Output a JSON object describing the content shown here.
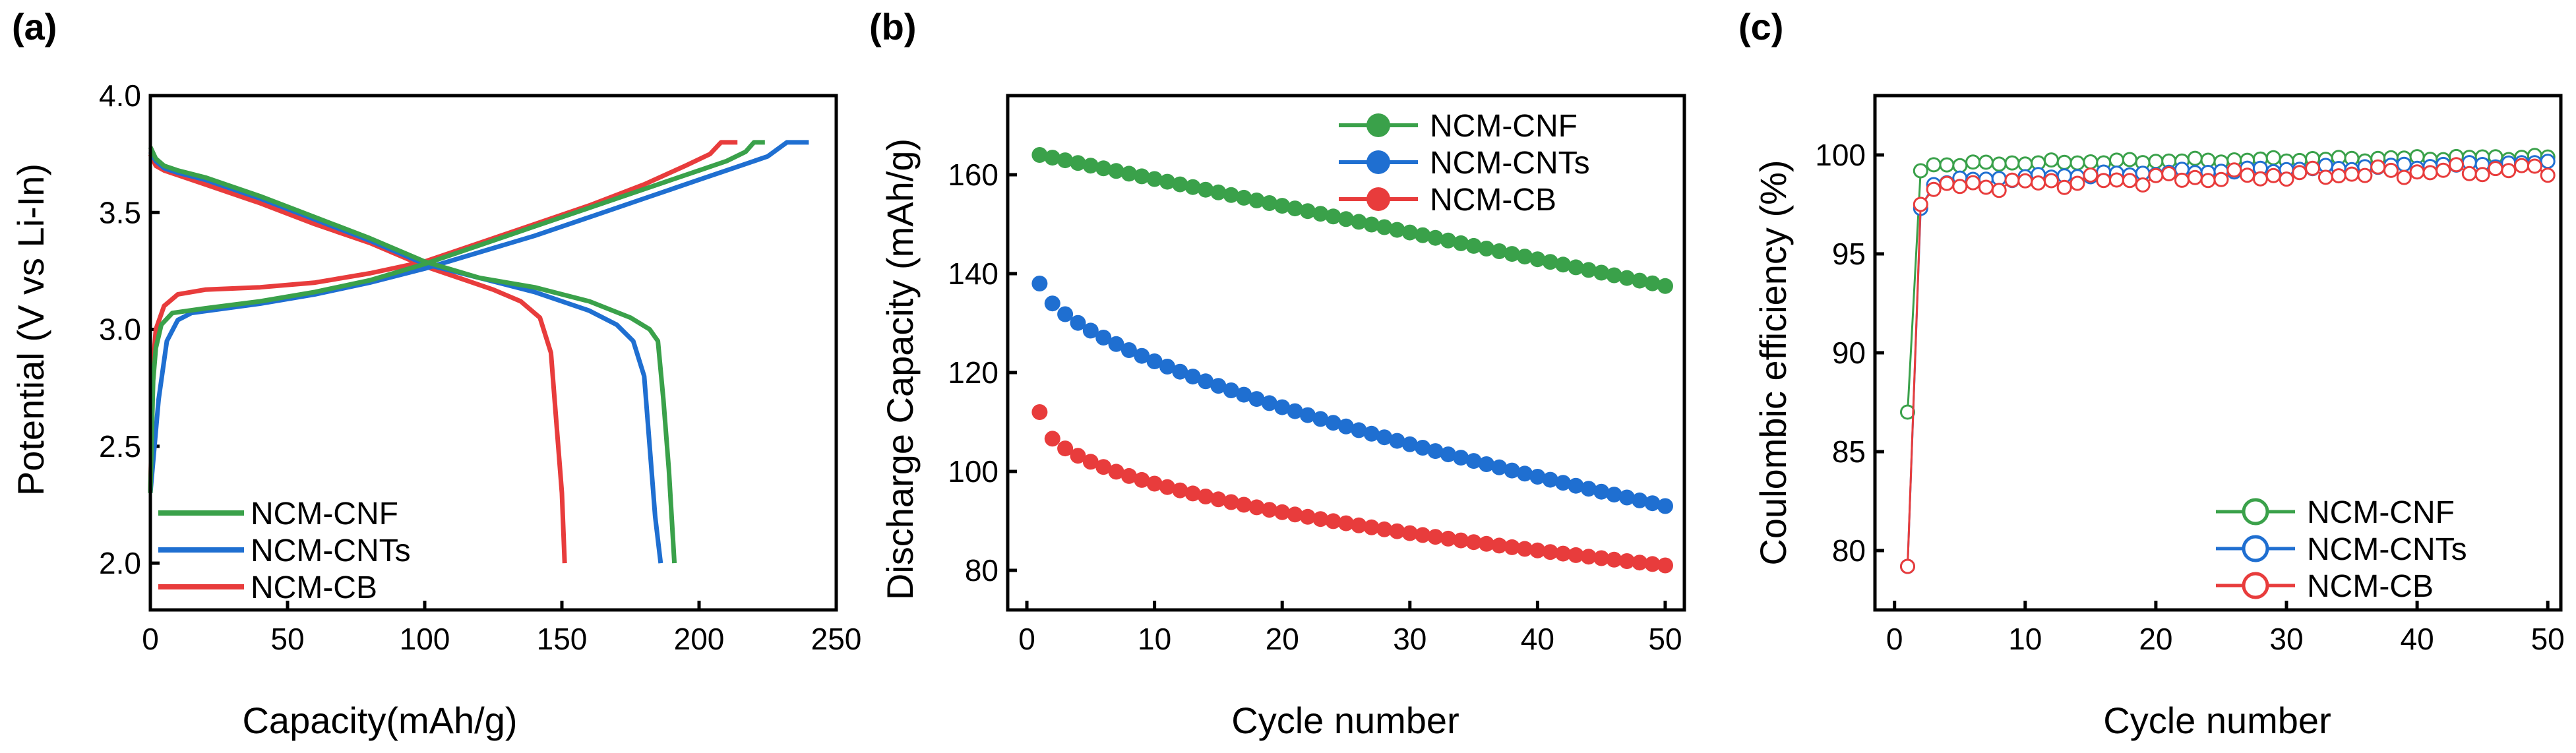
{
  "chart_data": [
    {
      "panel": "(a)",
      "type": "line",
      "xlabel": "Capacity(mAh/g)",
      "ylabel": "Potential (V vs Li-In)",
      "xlim": [
        0,
        250
      ],
      "ylim": [
        1.8,
        4.0
      ],
      "xticks": [
        0,
        50,
        100,
        150,
        200,
        250
      ],
      "yticks": [
        2.0,
        2.5,
        3.0,
        3.5,
        4.0
      ],
      "ytick_labels": [
        "2.0",
        "2.5",
        "3.0",
        "3.5",
        "4.0"
      ],
      "legend_position": "bottom-left",
      "series": [
        {
          "name": "NCM-CNF",
          "color": "#3aa14a",
          "charge": [
            [
              0,
              2.3
            ],
            [
              1,
              2.78
            ],
            [
              2,
              2.92
            ],
            [
              4,
              3.02
            ],
            [
              8,
              3.07
            ],
            [
              20,
              3.09
            ],
            [
              40,
              3.12
            ],
            [
              60,
              3.16
            ],
            [
              80,
              3.21
            ],
            [
              100,
              3.28
            ],
            [
              120,
              3.36
            ],
            [
              140,
              3.44
            ],
            [
              160,
              3.52
            ],
            [
              180,
              3.6
            ],
            [
              200,
              3.68
            ],
            [
              210,
              3.72
            ],
            [
              217,
              3.76
            ],
            [
              220,
              3.8
            ],
            [
              224,
              3.8
            ]
          ],
          "discharge": [
            [
              0,
              3.78
            ],
            [
              2,
              3.73
            ],
            [
              5,
              3.7
            ],
            [
              10,
              3.68
            ],
            [
              20,
              3.65
            ],
            [
              40,
              3.57
            ],
            [
              60,
              3.48
            ],
            [
              80,
              3.39
            ],
            [
              100,
              3.29
            ],
            [
              120,
              3.22
            ],
            [
              140,
              3.18
            ],
            [
              160,
              3.12
            ],
            [
              175,
              3.05
            ],
            [
              182,
              3.0
            ],
            [
              185,
              2.95
            ],
            [
              187,
              2.7
            ],
            [
              189,
              2.4
            ],
            [
              190,
              2.2
            ],
            [
              191,
              2.0
            ]
          ]
        },
        {
          "name": "NCM-CNTs",
          "color": "#1f6fd1",
          "charge": [
            [
              0,
              2.3
            ],
            [
              3,
              2.7
            ],
            [
              6,
              2.95
            ],
            [
              10,
              3.04
            ],
            [
              15,
              3.07
            ],
            [
              40,
              3.11
            ],
            [
              60,
              3.15
            ],
            [
              80,
              3.2
            ],
            [
              100,
              3.26
            ],
            [
              120,
              3.33
            ],
            [
              140,
              3.4
            ],
            [
              160,
              3.48
            ],
            [
              180,
              3.56
            ],
            [
              200,
              3.64
            ],
            [
              215,
              3.7
            ],
            [
              225,
              3.74
            ],
            [
              232,
              3.8
            ],
            [
              240,
              3.8
            ]
          ],
          "discharge": [
            [
              0,
              3.76
            ],
            [
              2,
              3.72
            ],
            [
              5,
              3.69
            ],
            [
              10,
              3.67
            ],
            [
              20,
              3.64
            ],
            [
              40,
              3.56
            ],
            [
              60,
              3.47
            ],
            [
              80,
              3.38
            ],
            [
              100,
              3.28
            ],
            [
              120,
              3.22
            ],
            [
              140,
              3.16
            ],
            [
              160,
              3.08
            ],
            [
              170,
              3.02
            ],
            [
              176,
              2.95
            ],
            [
              180,
              2.8
            ],
            [
              182,
              2.5
            ],
            [
              184,
              2.2
            ],
            [
              186,
              2.0
            ]
          ]
        },
        {
          "name": "NCM-CB",
          "color": "#e83c3c",
          "charge": [
            [
              0,
              2.3
            ],
            [
              1,
              2.85
            ],
            [
              2,
              3.0
            ],
            [
              5,
              3.1
            ],
            [
              10,
              3.15
            ],
            [
              20,
              3.17
            ],
            [
              40,
              3.18
            ],
            [
              60,
              3.2
            ],
            [
              80,
              3.24
            ],
            [
              100,
              3.29
            ],
            [
              120,
              3.37
            ],
            [
              140,
              3.45
            ],
            [
              160,
              3.53
            ],
            [
              180,
              3.62
            ],
            [
              195,
              3.7
            ],
            [
              204,
              3.75
            ],
            [
              208,
              3.8
            ],
            [
              214,
              3.8
            ]
          ],
          "discharge": [
            [
              0,
              3.75
            ],
            [
              2,
              3.7
            ],
            [
              5,
              3.68
            ],
            [
              10,
              3.66
            ],
            [
              20,
              3.62
            ],
            [
              40,
              3.54
            ],
            [
              60,
              3.45
            ],
            [
              80,
              3.37
            ],
            [
              100,
              3.27
            ],
            [
              115,
              3.21
            ],
            [
              125,
              3.17
            ],
            [
              135,
              3.12
            ],
            [
              142,
              3.05
            ],
            [
              146,
              2.9
            ],
            [
              148,
              2.6
            ],
            [
              150,
              2.3
            ],
            [
              151,
              2.0
            ]
          ]
        }
      ]
    },
    {
      "panel": "(b)",
      "type": "scatter",
      "xlabel": "Cycle number",
      "ylabel": "Discharge Capacity (mAh/g)",
      "xlim": [
        -1.5,
        51.5
      ],
      "ylim": [
        72,
        176
      ],
      "xticks": [
        0,
        10,
        20,
        30,
        40,
        50
      ],
      "yticks": [
        80,
        100,
        120,
        140,
        160
      ],
      "legend_position": "top-right",
      "series": [
        {
          "name": "NCM-CNF",
          "color": "#3aa14a",
          "start": 164,
          "end": 137.5,
          "shape": 1.0
        },
        {
          "name": "NCM-CNTs",
          "color": "#1f6fd1",
          "start": 138,
          "end": 93,
          "shape": 0.62
        },
        {
          "name": "NCM-CB",
          "color": "#e83c3c",
          "start": 112,
          "end": 81,
          "shape": 0.45
        }
      ]
    },
    {
      "panel": "(c)",
      "type": "scatter",
      "xlabel": "Cycle number",
      "ylabel": "Coulombic efficiency (%)",
      "xlim": [
        -1.5,
        51
      ],
      "ylim": [
        77,
        103
      ],
      "xticks": [
        0,
        10,
        20,
        30,
        40,
        50
      ],
      "yticks": [
        80,
        85,
        90,
        95,
        100
      ],
      "legend_position": "bottom-right",
      "series": [
        {
          "name": "NCM-CNF",
          "color": "#3aa14a",
          "first": [
            87.0,
            99.2
          ],
          "start": 99.5,
          "end": 99.9,
          "noise": 0.12
        },
        {
          "name": "NCM-CNTs",
          "color": "#1f6fd1",
          "first": [
            79.2,
            97.3
          ],
          "start": 98.6,
          "end": 99.6,
          "noise": 0.15
        },
        {
          "name": "NCM-CB",
          "color": "#e83c3c",
          "first": [
            79.2,
            97.5
          ],
          "start": 98.3,
          "end": 99.3,
          "noise": 0.35
        }
      ]
    }
  ]
}
